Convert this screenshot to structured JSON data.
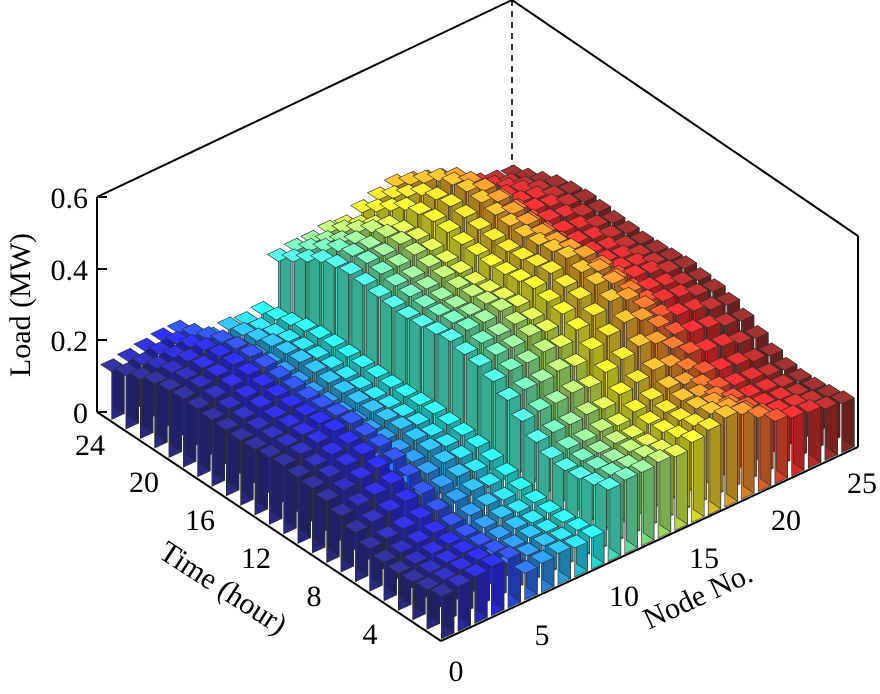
{
  "chart_data": {
    "type": "bar3d",
    "zlabel": "Load (MW)",
    "ylabel": "Time (hour)",
    "xlabel": "Node No.",
    "z_ticks": [
      "0",
      "0.2",
      "0.4",
      "0.6"
    ],
    "y_ticks": [
      "0",
      "4",
      "8",
      "12",
      "16",
      "20",
      "24"
    ],
    "x_ticks": [
      "5",
      "10",
      "15",
      "20",
      "25"
    ],
    "zlim": [
      0,
      0.6
    ],
    "ylim": [
      0,
      24
    ],
    "xlim": [
      0,
      25
    ],
    "grid": false,
    "colormap": "jet",
    "nodes": [
      1,
      2,
      3,
      4,
      5,
      6,
      7,
      8,
      9,
      10,
      11,
      12,
      13,
      14,
      15,
      16,
      17,
      18,
      19,
      20,
      21,
      22,
      23,
      24,
      25
    ],
    "hours": [
      1,
      2,
      3,
      4,
      5,
      6,
      7,
      8,
      9,
      10,
      11,
      12,
      13,
      14,
      15,
      16,
      17,
      18,
      19,
      20,
      21,
      22,
      23,
      24
    ],
    "node_base_load": [
      0.19,
      0.2,
      0.21,
      0.22,
      0.22,
      0.12,
      0.13,
      0.14,
      0.13,
      0.14,
      0.32,
      0.33,
      0.33,
      0.34,
      0.33,
      0.36,
      0.38,
      0.4,
      0.38,
      0.33,
      0.28,
      0.26,
      0.25,
      0.23,
      0.22
    ],
    "hourly_profile": [
      0.62,
      0.58,
      0.55,
      0.54,
      0.56,
      0.62,
      0.72,
      0.82,
      0.9,
      0.95,
      0.97,
      1.0,
      0.98,
      0.96,
      0.95,
      0.96,
      0.97,
      0.99,
      1.0,
      0.98,
      0.94,
      0.86,
      0.78,
      0.7
    ]
  }
}
